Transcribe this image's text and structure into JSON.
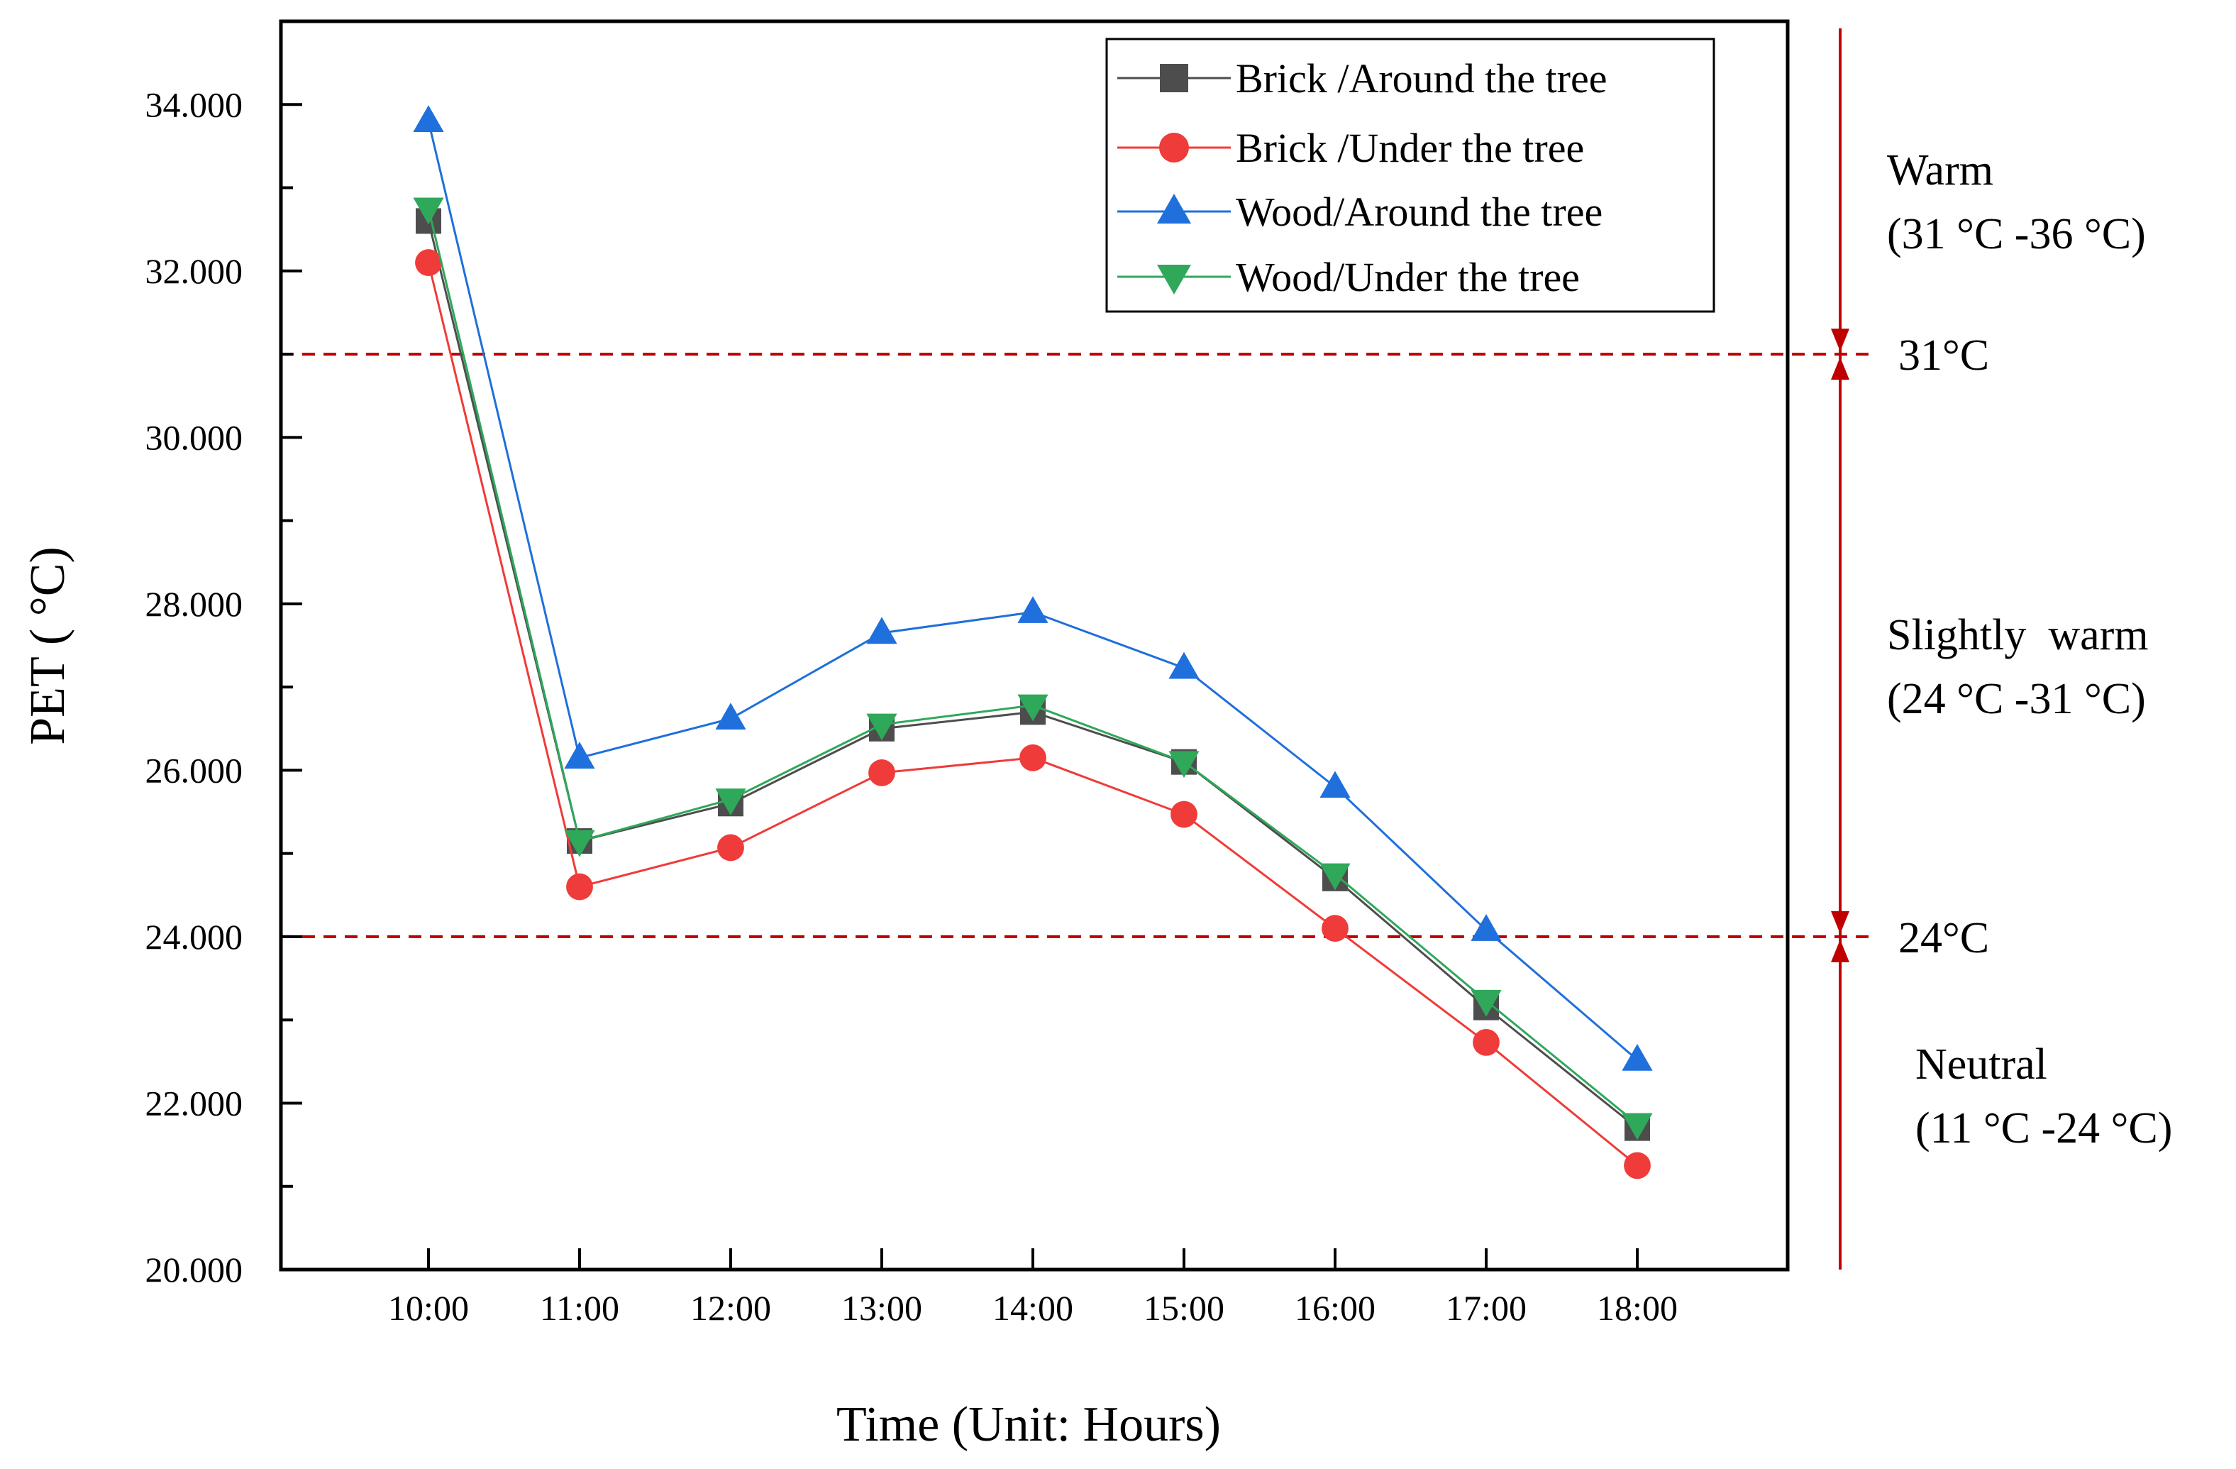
{
  "chart_data": {
    "type": "line",
    "title": "",
    "xlabel": "Time (Unit: Hours)",
    "ylabel": "PET ( °C)",
    "categories": [
      "10:00",
      "11:00",
      "12:00",
      "13:00",
      "14:00",
      "15:00",
      "16:00",
      "17:00",
      "18:00"
    ],
    "ylim": [
      20,
      35
    ],
    "yticks": [
      20,
      22,
      24,
      26,
      28,
      30,
      32,
      34
    ],
    "ytick_labels": [
      "20.000",
      "22.000",
      "24.000",
      "26.000",
      "28.000",
      "30.000",
      "32.000",
      "34.000"
    ],
    "legend_position": "top-right",
    "series": [
      {
        "name": "Brick /Around the tree",
        "color": "#4d4d4d",
        "marker": "square",
        "values": [
          32.6,
          25.15,
          25.6,
          26.5,
          26.7,
          26.1,
          24.7,
          23.15,
          21.7
        ]
      },
      {
        "name": "Brick /Under the tree",
        "color": "#ef3b39",
        "marker": "circle",
        "values": [
          32.1,
          24.6,
          25.07,
          25.97,
          26.15,
          25.47,
          24.1,
          22.73,
          21.25
        ]
      },
      {
        "name": "Wood/Around the tree",
        "color": "#1f6fdc",
        "marker": "triangle-up",
        "values": [
          33.8,
          26.15,
          26.62,
          27.65,
          27.9,
          27.23,
          25.8,
          24.08,
          22.52
        ]
      },
      {
        "name": "Wood/Under the tree",
        "color": "#2fa85a",
        "marker": "triangle-down",
        "values": [
          32.75,
          25.15,
          25.65,
          26.55,
          26.78,
          26.1,
          24.75,
          23.23,
          21.75
        ]
      }
    ],
    "thresholds": [
      {
        "value": 31,
        "label": "31°C",
        "color": "#c00000"
      },
      {
        "value": 24,
        "label": "24°C",
        "color": "#c00000"
      }
    ],
    "zones": [
      {
        "name": "Warm",
        "range": "(31 °C -36 °C)",
        "from": 31,
        "to": 36
      },
      {
        "name": "Slightly  warm",
        "range": "(24 °C -31 °C)",
        "from": 24,
        "to": 31
      },
      {
        "name": "Neutral",
        "range": "(11 °C -24 °C)",
        "from": 11,
        "to": 24
      }
    ],
    "zone_arrow_color": "#c00000"
  }
}
